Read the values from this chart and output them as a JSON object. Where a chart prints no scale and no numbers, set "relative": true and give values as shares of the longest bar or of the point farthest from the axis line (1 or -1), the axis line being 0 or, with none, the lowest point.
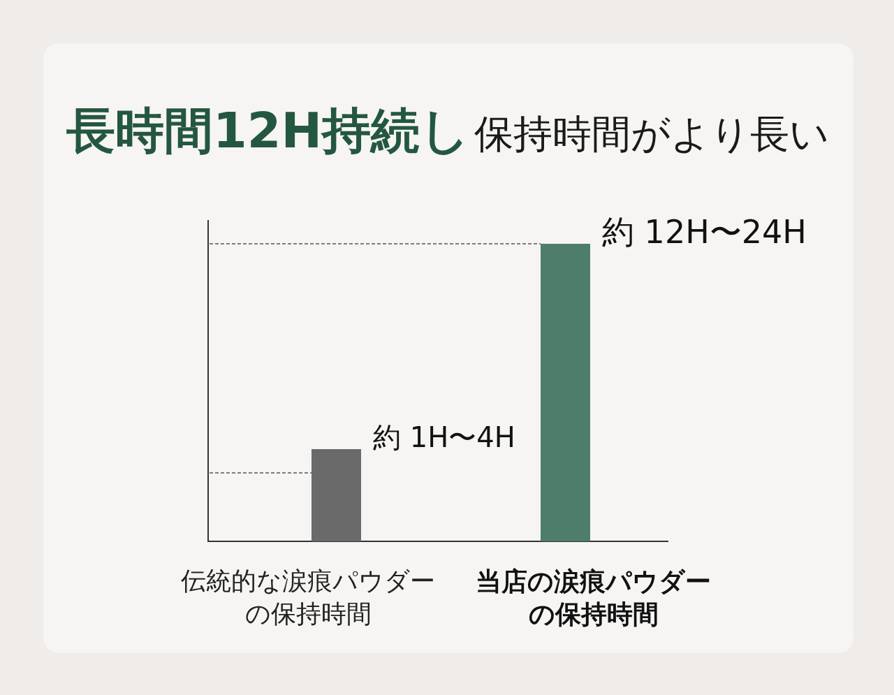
{
  "chart_data": {
    "type": "bar",
    "title": "長時間12H持続し",
    "subtitle": "保持時間がより長い",
    "categories": [
      "伝統的な涙痕パウダーの保持時間",
      "当店の涙痕パウダーの保持時間"
    ],
    "values": [
      0.31,
      1
    ],
    "colors": [
      "#6a6a6a",
      "#4f7d6c"
    ],
    "relative": true,
    "annotations": [
      {
        "text": "約 1H〜4H",
        "x": "伝統的な涙痕パウダーの保持時間",
        "y": 0.31
      },
      {
        "text": "約 12H〜24H",
        "x": "当店の涙痕パウダーの保持時間",
        "y": 1
      }
    ],
    "ref_lines": [
      {
        "axis": "y",
        "value": 0.23,
        "color": "#555555",
        "line_style": "dashed"
      },
      {
        "axis": "y",
        "value": 1,
        "color": "#555555",
        "line_style": "dashed"
      }
    ]
  }
}
